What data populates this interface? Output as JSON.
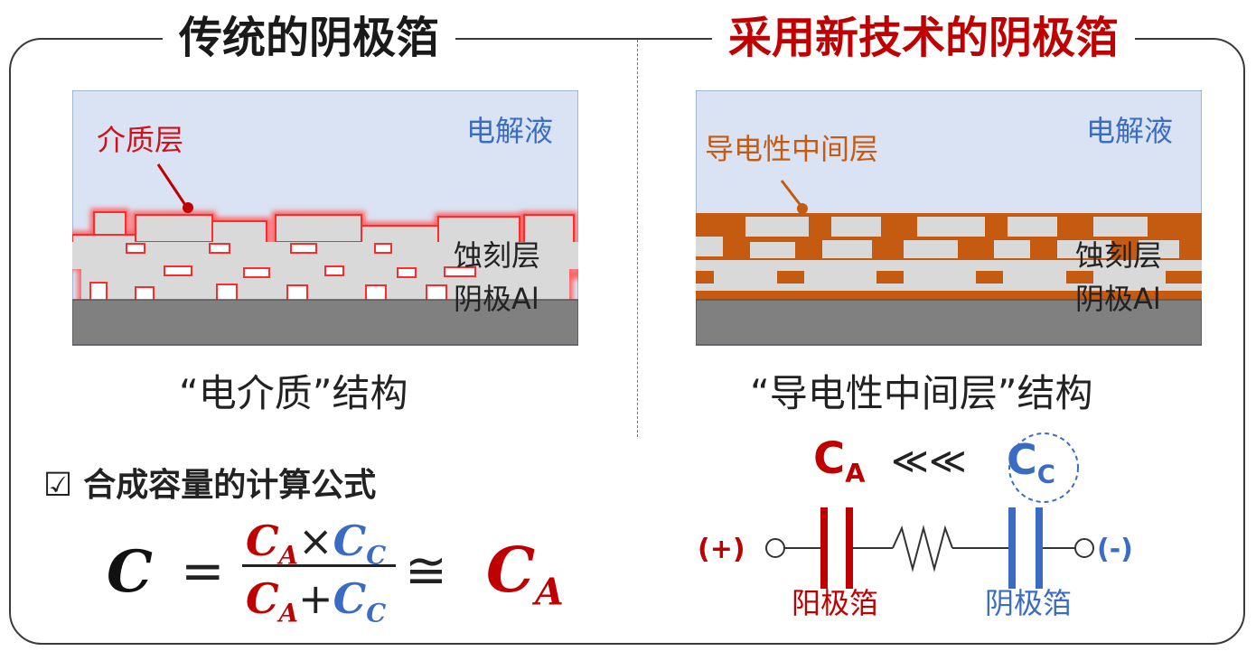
{
  "left": {
    "title": "传统的阴极箔",
    "electrolyte": "电解液",
    "dielectric_label": "介质层",
    "etched_label": "蚀刻层",
    "cathode_label": "阴极Al",
    "caption": "“电介质”结构"
  },
  "right": {
    "title": "采用新技术的阴极箔",
    "electrolyte": "电解液",
    "interlayer_label": "导电性中间层",
    "etched_label": "蚀刻层",
    "cathode_label": "阴极Al",
    "caption": "“导电性中间层”结构"
  },
  "formula": {
    "checkbox": "☑",
    "title": "合成容量的计算公式",
    "lhs": "C",
    "equals": "=",
    "num_a": "C",
    "num_a_sub": "A",
    "times": "×",
    "num_c": "C",
    "num_c_sub": "C",
    "den_a": "C",
    "den_a_sub": "A",
    "plus": "+",
    "den_c": "C",
    "den_c_sub": "C",
    "approx": "≅",
    "rhs": "C",
    "rhs_sub": "A"
  },
  "circuit": {
    "ca": "C",
    "ca_sub": "A",
    "much_less": "≪≪",
    "cc": "C",
    "cc_sub": "C",
    "plus_terminal": "(+)",
    "minus_terminal": "(-)",
    "anode_foil": "阳极箔",
    "cathode_foil": "阴极箔"
  },
  "colors": {
    "red": "#c00000",
    "blue": "#3b6cc4",
    "orange": "#c55a11",
    "electrolyte_bg": "#dae3f3",
    "etched_gray": "#d9d9d9",
    "cathode_gray": "#808080"
  }
}
